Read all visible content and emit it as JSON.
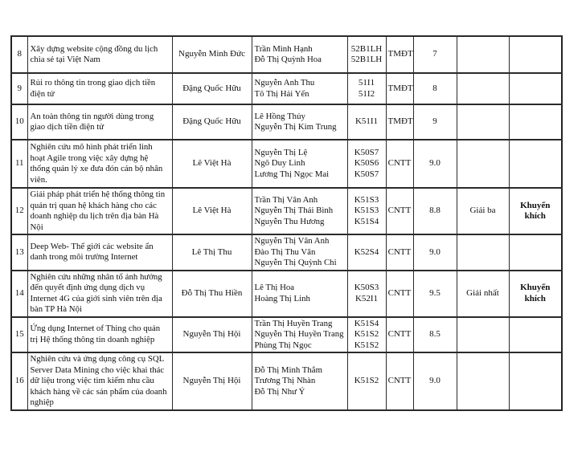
{
  "document": {
    "kind": "project-results-table",
    "rows": [
      {
        "no": "8",
        "title": "Xây dựng website cộng đồng du lịch chia sẻ tại Việt Nam",
        "advisor": "Nguyễn Minh Đức",
        "students": [
          "Trần Minh Hạnh",
          "Đỗ Thị Quỳnh Hoa"
        ],
        "classes": [
          "52B1LH",
          "52B1LH"
        ],
        "department": "TMĐT",
        "score": "7",
        "prize": "",
        "award": ""
      },
      {
        "no": "9",
        "title": "Rủi ro thông tin trong giao dịch tiền điện tử",
        "advisor": "Đặng Quốc Hữu",
        "students": [
          "Nguyễn Anh Thu",
          "Tô Thị Hải Yến"
        ],
        "classes": [
          "51I1",
          "51I2"
        ],
        "department": "TMĐT",
        "score": "8",
        "prize": "",
        "award": ""
      },
      {
        "no": "10",
        "title": "An toàn thông tin người dùng trong giao dịch tiền điện tử",
        "advisor": "Đặng Quốc Hữu",
        "students": [
          "Lê Hồng Thủy",
          "Nguyễn Thị Kim Trung"
        ],
        "classes": [
          "K51I1"
        ],
        "department": "TMĐT",
        "score": "9",
        "prize": "",
        "award": ""
      },
      {
        "no": "11",
        "title": "Nghiên cứu mô hình phát triển linh hoạt Agile trong việc xây dựng hệ thống quản lý xe đưa đón cán bộ nhân viên.",
        "advisor": "Lê Việt Hà",
        "students": [
          "Nguyễn Thị Lệ",
          "Ngô Duy Linh",
          "Lương Thị Ngọc Mai"
        ],
        "classes": [
          "K50S7",
          "K50S6",
          "K50S7"
        ],
        "department": "CNTT",
        "score": "9.0",
        "prize": "",
        "award": ""
      },
      {
        "no": "12",
        "title": "Giải pháp phát triển hệ thống thông tin quản trị quan hệ khách hàng cho các doanh nghiệp du lịch trên địa bàn Hà Nội",
        "advisor": "Lê Việt Hà",
        "students": [
          "Trần Thị Vân Anh",
          "Nguyễn Thị Thái Bình",
          "Nguyễn Thu Hương"
        ],
        "classes": [
          "K51S3",
          "K51S3",
          "K51S4"
        ],
        "department": "CNTT",
        "score": "8.8",
        "prize": "Giải ba",
        "award": "Khuyến khích"
      },
      {
        "no": "13",
        "title": "Deep Web- Thế giới các website ẩn danh trong môi trường Internet",
        "advisor": "Lê Thị Thu",
        "students": [
          "Nguyễn Thị Vân Anh",
          "Đào Thị Thu Vân",
          "Nguyễn Thị Quỳnh Chi"
        ],
        "classes": [
          "K52S4"
        ],
        "department": "CNTT",
        "score": "9.0",
        "prize": "",
        "award": ""
      },
      {
        "no": "14",
        "title": "Nghiên cứu những nhân tố ảnh hưởng đến quyết định ứng dụng dịch vụ Internet 4G của giới sinh viên trên địa bàn TP Hà Nội",
        "advisor": "Đỗ Thị Thu Hiền",
        "students": [
          "Lê Thị Hoa",
          "Hoàng Thị Linh"
        ],
        "classes": [
          "K50S3",
          "K52I1"
        ],
        "department": "CNTT",
        "score": "9.5",
        "prize": "Giải nhất",
        "award": "Khuyến khích"
      },
      {
        "no": "15",
        "title": "Ứng dụng Internet of Thing cho quản trị Hệ thống thông tin doanh nghiệp",
        "advisor": "Nguyễn Thị Hội",
        "students": [
          "Trần Thị Huyền Trang",
          "Nguyễn Thị Huyền Trang",
          "Phùng Thị Ngọc"
        ],
        "classes": [
          "K51S4",
          "K51S2",
          "K51S2"
        ],
        "department": "CNTT",
        "score": "8.5",
        "prize": "",
        "award": ""
      },
      {
        "no": "16",
        "title": "Nghiên cứu và ứng dụng công cụ SQL Server Data Mining cho việc khai thác dữ liệu trong việc tìm kiếm nhu cầu khách hàng về các sản phẩm của doanh nghiệp",
        "advisor": "Nguyễn Thị Hội",
        "students": [
          "Đỗ Thị Minh Thắm",
          "Trương Thị Nhàn",
          "Đỗ Thị Như Ý"
        ],
        "classes": [
          "K51S2"
        ],
        "department": "CNTT",
        "score": "9.0",
        "prize": "",
        "award": ""
      }
    ]
  }
}
